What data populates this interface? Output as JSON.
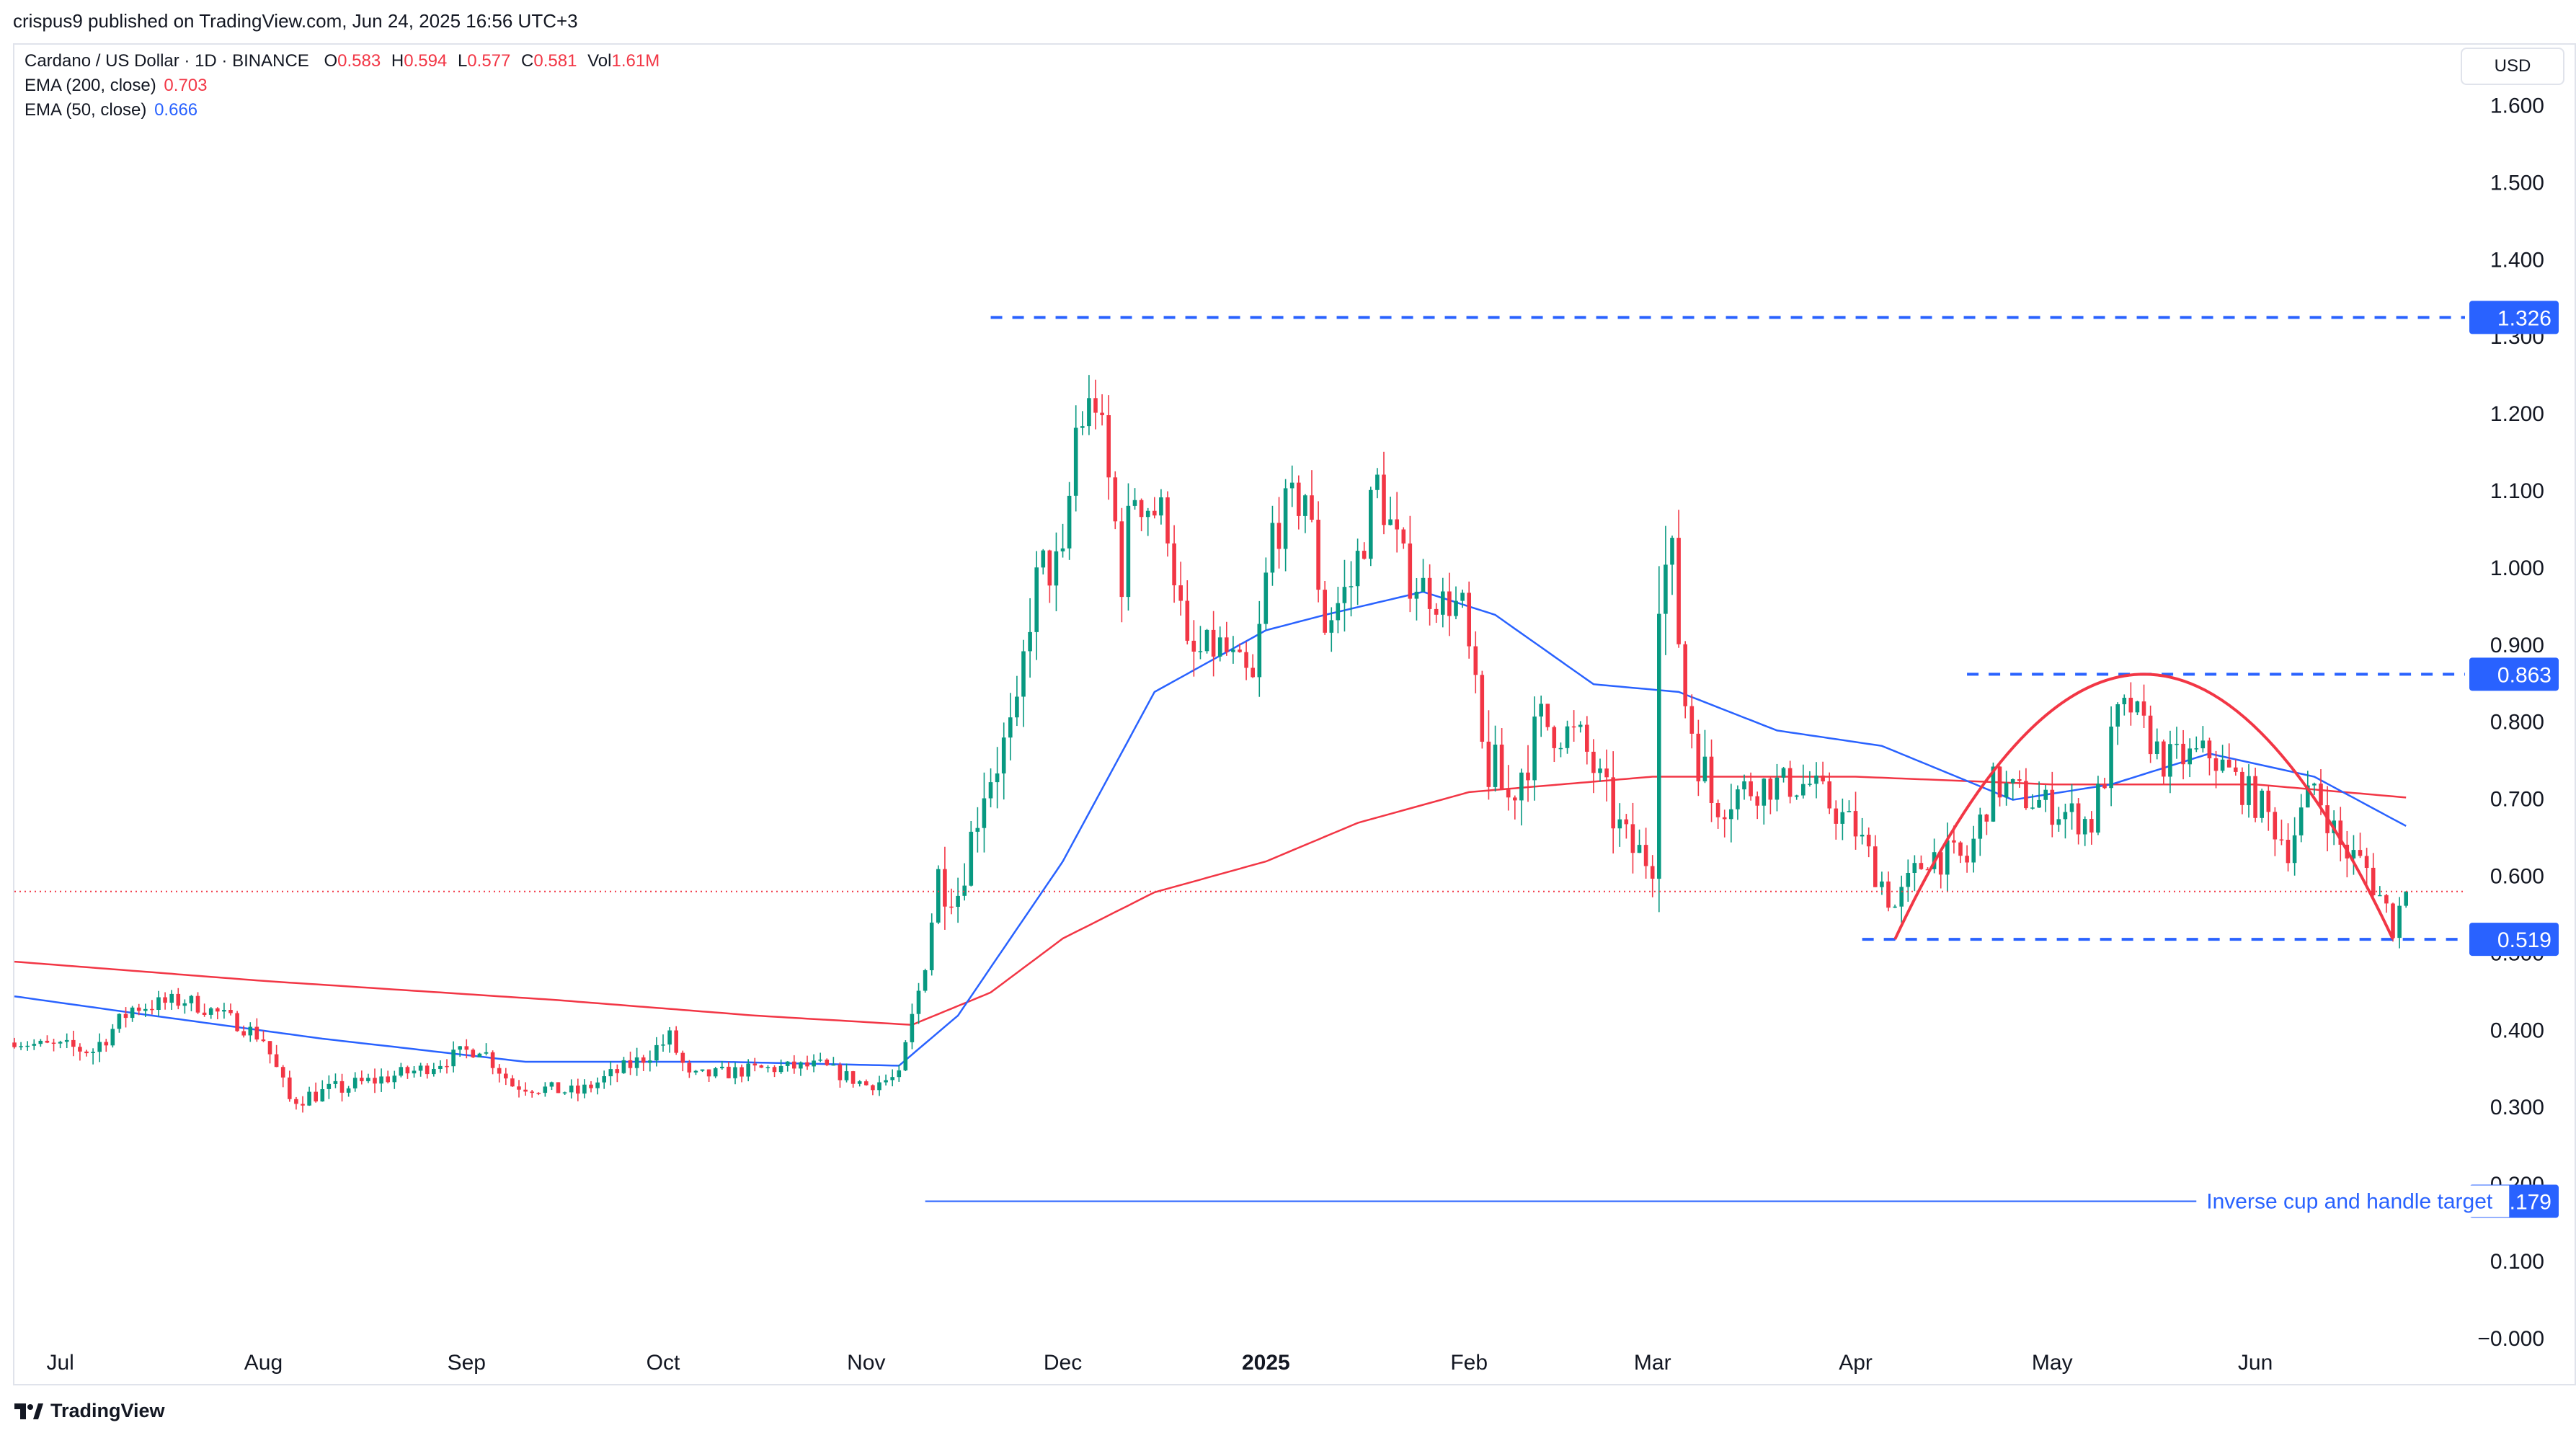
{
  "header": {
    "published": "crispus9 published on TradingView.com, Jun 24, 2025 16:56 UTC+3"
  },
  "legend": {
    "symbol": "Cardano / US Dollar · 1D · BINANCE",
    "open_label": "O",
    "open": "0.583",
    "high_label": "H",
    "high": "0.594",
    "low_label": "L",
    "low": "0.577",
    "close_label": "C",
    "close": "0.581",
    "vol_label": "Vol",
    "vol": "1.61M",
    "ema200_label": "EMA (200, close)",
    "ema200_value": "0.703",
    "ema50_label": "EMA (50, close)",
    "ema50_value": "0.666"
  },
  "currency_button": "USD",
  "brand": "TradingView",
  "colors": {
    "up": "#089981",
    "down": "#f23645",
    "ema200": "#f23645",
    "ema50": "#2962ff",
    "level": "#2962ff",
    "cup": "#f23645",
    "price_line": "#f23645"
  },
  "chart_data": {
    "type": "candlestick",
    "symbol": "ADAUSD",
    "interval": "1D",
    "y_ticks": [
      "−0.000",
      "0.100",
      "0.200",
      "0.300",
      "0.400",
      "0.500",
      "0.600",
      "0.700",
      "0.800",
      "0.900",
      "1.000",
      "1.100",
      "1.200",
      "1.300",
      "1.400",
      "1.500",
      "1.600"
    ],
    "ylim": [
      -0.06,
      1.68
    ],
    "x_ticks": [
      {
        "date": "2024-07-01",
        "label": "Jul"
      },
      {
        "date": "2024-08-01",
        "label": "Aug"
      },
      {
        "date": "2024-09-01",
        "label": "Sep"
      },
      {
        "date": "2024-10-01",
        "label": "Oct"
      },
      {
        "date": "2024-11-01",
        "label": "Nov"
      },
      {
        "date": "2024-12-01",
        "label": "Dec"
      },
      {
        "date": "2025-01-01",
        "label": "2025",
        "bold": true
      },
      {
        "date": "2025-02-01",
        "label": "Feb"
      },
      {
        "date": "2025-03-01",
        "label": "Mar"
      },
      {
        "date": "2025-04-01",
        "label": "Apr"
      },
      {
        "date": "2025-05-01",
        "label": "May"
      },
      {
        "date": "2025-06-01",
        "label": "Jun"
      }
    ],
    "xlim": [
      "2024-06-24",
      "2025-07-03"
    ],
    "price_anchors": [
      [
        "2024-06-24",
        0.385,
        0.005
      ],
      [
        "2024-07-06",
        0.375,
        0.012
      ],
      [
        "2024-07-12",
        0.43,
        0.01
      ],
      [
        "2024-07-20",
        0.44,
        0.01
      ],
      [
        "2024-07-26",
        0.42,
        0.008
      ],
      [
        "2024-08-01",
        0.39,
        0.01
      ],
      [
        "2024-08-05",
        0.31,
        0.01
      ],
      [
        "2024-08-15",
        0.33,
        0.01
      ],
      [
        "2024-08-25",
        0.35,
        0.008
      ],
      [
        "2024-09-03",
        0.38,
        0.01
      ],
      [
        "2024-09-08",
        0.33,
        0.008
      ],
      [
        "2024-09-18",
        0.32,
        0.008
      ],
      [
        "2024-09-27",
        0.36,
        0.01
      ],
      [
        "2024-10-02",
        0.39,
        0.012
      ],
      [
        "2024-10-05",
        0.34,
        0.008
      ],
      [
        "2024-10-15",
        0.35,
        0.008
      ],
      [
        "2024-10-25",
        0.355,
        0.008
      ],
      [
        "2024-11-01",
        0.33,
        0.008
      ],
      [
        "2024-11-06",
        0.34,
        0.008
      ],
      [
        "2024-11-09",
        0.45,
        0.02
      ],
      [
        "2024-11-12",
        0.6,
        0.03
      ],
      [
        "2024-11-15",
        0.58,
        0.02
      ],
      [
        "2024-11-19",
        0.72,
        0.03
      ],
      [
        "2024-11-24",
        0.8,
        0.03
      ],
      [
        "2024-11-26",
        0.95,
        0.04
      ],
      [
        "2024-11-28",
        1.0,
        0.03
      ],
      [
        "2024-12-01",
        1.0,
        0.03
      ],
      [
        "2024-12-03",
        1.18,
        0.03
      ],
      [
        "2024-12-06",
        1.22,
        0.03
      ],
      [
        "2024-12-10",
        1.0,
        0.04
      ],
      [
        "2024-12-12",
        1.1,
        0.03
      ],
      [
        "2024-12-17",
        1.06,
        0.03
      ],
      [
        "2024-12-20",
        0.88,
        0.03
      ],
      [
        "2024-12-25",
        0.9,
        0.02
      ],
      [
        "2024-12-30",
        0.85,
        0.02
      ],
      [
        "2025-01-02",
        1.05,
        0.03
      ],
      [
        "2025-01-07",
        1.1,
        0.03
      ],
      [
        "2025-01-10",
        0.93,
        0.03
      ],
      [
        "2025-01-14",
        0.98,
        0.03
      ],
      [
        "2025-01-18",
        1.11,
        0.03
      ],
      [
        "2025-01-22",
        1.0,
        0.03
      ],
      [
        "2025-01-27",
        0.96,
        0.02
      ],
      [
        "2025-01-31",
        0.95,
        0.02
      ],
      [
        "2025-02-03",
        0.76,
        0.04
      ],
      [
        "2025-02-07",
        0.7,
        0.03
      ],
      [
        "2025-02-12",
        0.8,
        0.03
      ],
      [
        "2025-02-18",
        0.78,
        0.02
      ],
      [
        "2025-02-25",
        0.64,
        0.03
      ],
      [
        "2025-03-01",
        0.62,
        0.02
      ],
      [
        "2025-03-02",
        1.0,
        0.05
      ],
      [
        "2025-03-04",
        1.0,
        0.04
      ],
      [
        "2025-03-06",
        0.83,
        0.04
      ],
      [
        "2025-03-10",
        0.7,
        0.03
      ],
      [
        "2025-03-18",
        0.72,
        0.02
      ],
      [
        "2025-03-25",
        0.72,
        0.02
      ],
      [
        "2025-04-01",
        0.66,
        0.02
      ],
      [
        "2025-04-07",
        0.56,
        0.02
      ],
      [
        "2025-04-12",
        0.63,
        0.02
      ],
      [
        "2025-04-18",
        0.62,
        0.02
      ],
      [
        "2025-04-22",
        0.72,
        0.02
      ],
      [
        "2025-05-01",
        0.69,
        0.02
      ],
      [
        "2025-05-07",
        0.67,
        0.02
      ],
      [
        "2025-05-11",
        0.8,
        0.03
      ],
      [
        "2025-05-13",
        0.82,
        0.02
      ],
      [
        "2025-05-18",
        0.75,
        0.02
      ],
      [
        "2025-05-25",
        0.76,
        0.02
      ],
      [
        "2025-06-02",
        0.69,
        0.02
      ],
      [
        "2025-06-06",
        0.64,
        0.02
      ],
      [
        "2025-06-10",
        0.72,
        0.02
      ],
      [
        "2025-06-14",
        0.64,
        0.02
      ],
      [
        "2025-06-18",
        0.61,
        0.02
      ],
      [
        "2025-06-22",
        0.54,
        0.02
      ],
      [
        "2025-06-24",
        0.581,
        0.005
      ]
    ],
    "ema200_path": [
      [
        "2024-06-24",
        0.49
      ],
      [
        "2024-08-01",
        0.465
      ],
      [
        "2024-09-15",
        0.44
      ],
      [
        "2024-10-15",
        0.42
      ],
      [
        "2024-11-08",
        0.408
      ],
      [
        "2024-11-20",
        0.45
      ],
      [
        "2024-12-01",
        0.52
      ],
      [
        "2024-12-15",
        0.58
      ],
      [
        "2025-01-01",
        0.62
      ],
      [
        "2025-01-15",
        0.67
      ],
      [
        "2025-02-01",
        0.71
      ],
      [
        "2025-03-01",
        0.73
      ],
      [
        "2025-04-01",
        0.73
      ],
      [
        "2025-05-01",
        0.72
      ],
      [
        "2025-06-01",
        0.72
      ],
      [
        "2025-06-24",
        0.703
      ]
    ],
    "ema50_path": [
      [
        "2024-06-24",
        0.445
      ],
      [
        "2024-07-15",
        0.42
      ],
      [
        "2024-08-10",
        0.39
      ],
      [
        "2024-09-10",
        0.36
      ],
      [
        "2024-10-10",
        0.36
      ],
      [
        "2024-11-06",
        0.355
      ],
      [
        "2024-11-15",
        0.42
      ],
      [
        "2024-12-01",
        0.62
      ],
      [
        "2024-12-15",
        0.84
      ],
      [
        "2025-01-01",
        0.92
      ],
      [
        "2025-01-10",
        0.94
      ],
      [
        "2025-01-25",
        0.97
      ],
      [
        "2025-02-05",
        0.94
      ],
      [
        "2025-02-20",
        0.85
      ],
      [
        "2025-03-05",
        0.84
      ],
      [
        "2025-03-20",
        0.79
      ],
      [
        "2025-04-05",
        0.77
      ],
      [
        "2025-04-25",
        0.7
      ],
      [
        "2025-05-10",
        0.72
      ],
      [
        "2025-05-25",
        0.76
      ],
      [
        "2025-06-10",
        0.73
      ],
      [
        "2025-06-24",
        0.666
      ]
    ],
    "last_price": 0.581,
    "levels": [
      {
        "value": 1.326,
        "label": "1.326",
        "from": "2024-11-20",
        "to": "2025-07-03",
        "style": "dashed"
      },
      {
        "value": 0.863,
        "label": "0.863",
        "from": "2025-04-18",
        "to": "2025-07-03",
        "style": "dashed"
      },
      {
        "value": 0.519,
        "label": "0.519",
        "from": "2025-04-02",
        "to": "2025-07-03",
        "style": "dashed"
      },
      {
        "value": 0.179,
        "label": "0.179",
        "from": "2024-11-10",
        "to": "2025-05-23",
        "style": "solid",
        "text": "Inverse cup and handle target"
      }
    ],
    "cup": {
      "start": [
        "2025-04-07",
        0.519
      ],
      "peak": [
        "2025-05-15",
        0.863
      ],
      "end": [
        "2025-06-22",
        0.519
      ]
    }
  }
}
